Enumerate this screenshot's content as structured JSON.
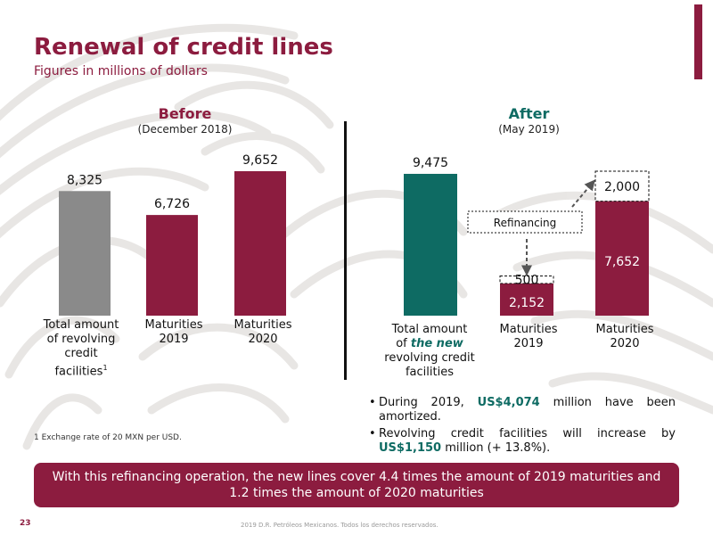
{
  "page": {
    "title": "Renewal of credit lines",
    "subtitle": "Figures in millions of dollars",
    "page_number": "23",
    "copyright": "2019 D.R. Petróleos Mexicanos. Todos los derechos reservados.",
    "footnote": "1 Exchange rate of 20 MXN per USD.",
    "banner": "With this refinancing operation, the new lines cover 4.4 times the amount of 2019 maturities and 1.2 times the amount of 2020 maturities"
  },
  "before": {
    "heading": "Before",
    "date": "(December 2018)",
    "categories": {
      "total": {
        "line1": "Total amount",
        "line2": "of revolving",
        "line3": "credit",
        "line4": "facilities",
        "sup": "1"
      },
      "m2019": {
        "line1": "Maturities",
        "line2": "2019"
      },
      "m2020": {
        "line1": "Maturities",
        "line2": "2020"
      }
    }
  },
  "after": {
    "heading": "After",
    "date": "(May 2019)",
    "refinancing_label": "Refinancing",
    "categories": {
      "total": {
        "line1": "Total amount",
        "line2a": "of ",
        "line2b": "the new",
        "line3": "revolving credit",
        "line4": "facilities"
      },
      "m2019": {
        "line1": "Maturities",
        "line2": "2019"
      },
      "m2020": {
        "line1": "Maturities",
        "line2": "2020"
      }
    }
  },
  "bullets": [
    {
      "pre": "During 2019, ",
      "hl": "US$4,074",
      "post": " million have been amortized."
    },
    {
      "pre": "Revolving credit facilities will increase by ",
      "hl": "US$1,150",
      "post": " million (+ 13.8%)."
    }
  ],
  "colors": {
    "maroon": "#8c1c3f",
    "gray": "#8a8a8a",
    "teal": "#0e6b63",
    "heading_before": "#8c1c3f",
    "heading_after": "#0e6b63"
  },
  "chart_data": [
    {
      "type": "bar",
      "categories": [
        "Total amount of revolving credit facilities",
        "Maturities 2019",
        "Maturities 2020"
      ],
      "values": [
        8325,
        6726,
        9652
      ],
      "labels": [
        "8,325",
        "6,726",
        "9,652"
      ],
      "colors": [
        "#8a8a8a",
        "#8c1c3f",
        "#8c1c3f"
      ]
    },
    {
      "type": "bar",
      "stacked": true,
      "categories": [
        "Total amount of the new revolving credit facilities",
        "Maturities 2019",
        "Maturities 2020"
      ],
      "series": [
        {
          "values": [
            9475,
            2152,
            7652
          ],
          "labels": [
            "9,475",
            "2,152",
            "7,652"
          ]
        },
        {
          "values": [
            0,
            500,
            2000
          ],
          "labels": [
            "",
            "500",
            "2,000"
          ]
        }
      ],
      "colors": [
        "#0e6b63",
        "#8c1c3f",
        "#8c1c3f"
      ]
    }
  ]
}
